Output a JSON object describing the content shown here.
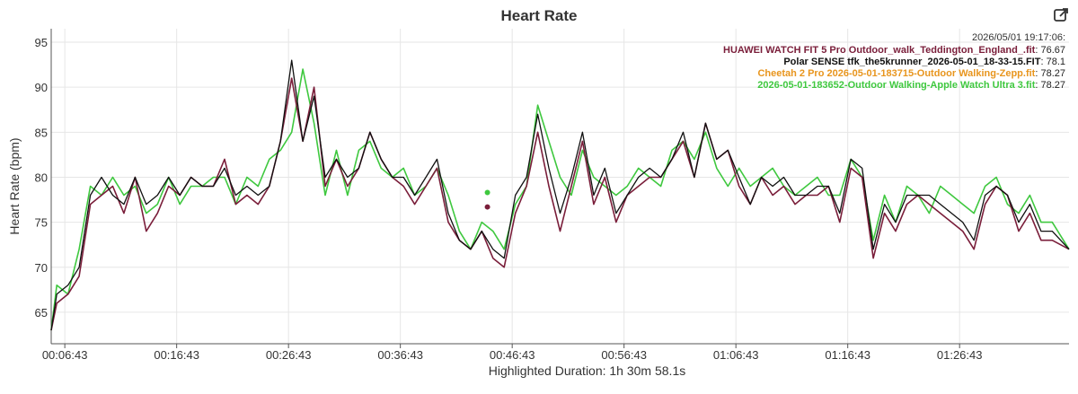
{
  "chart_data": {
    "type": "line",
    "title": "Heart Rate",
    "ylabel": "Heart Rate (bpm)",
    "xlabel": "Highlighted Duration: 1h 30m 58.1s",
    "ylim": [
      61.5,
      96.5
    ],
    "yticks": [
      65,
      70,
      75,
      80,
      85,
      90,
      95
    ],
    "xticks": [
      "00:06:43",
      "00:16:43",
      "00:26:43",
      "00:36:43",
      "00:46:43",
      "00:56:43",
      "01:06:43",
      "01:16:43",
      "01:26:43"
    ],
    "x_unit": "minutes elapsed",
    "xlim": [
      5.5,
      96.5
    ],
    "grid": true,
    "legend_placement": "top-right",
    "tooltip": {
      "timestamp": "2026/05/01 19:17:06:",
      "entries": [
        {
          "name": "HUAWEI WATCH FIT 5 Pro Outdoor_walk_Teddington_England_.fit",
          "value": "76.67",
          "color": "#7a1e3a"
        },
        {
          "name": "Polar SENSE tfk_the5krunner_2026-05-01_18-33-15.FIT",
          "value": "78.1",
          "color": "#111111"
        },
        {
          "name": "Cheetah 2 Pro 2026-05-01-183715-Outdoor Walking-Zepp.fit",
          "value": "78.27",
          "color": "#e8951d"
        },
        {
          "name": "2026-05-01-183652-Outdoor Walking-Apple Watch Ultra 3.fit",
          "value": "78.27",
          "color": "#3fc83f"
        }
      ]
    },
    "series": [
      {
        "name": "HUAWEI WATCH FIT 5 Pro Outdoor_walk_Teddington_England_.fit",
        "color": "#7a1e3a",
        "points": [
          [
            5.5,
            63
          ],
          [
            6,
            66
          ],
          [
            7,
            67
          ],
          [
            8,
            69
          ],
          [
            9,
            77
          ],
          [
            10,
            78
          ],
          [
            11,
            79
          ],
          [
            12,
            76
          ],
          [
            13,
            80
          ],
          [
            14,
            74
          ],
          [
            15,
            76
          ],
          [
            16,
            79
          ],
          [
            17,
            78
          ],
          [
            18,
            80
          ],
          [
            19,
            79
          ],
          [
            20,
            79
          ],
          [
            21,
            82
          ],
          [
            22,
            77
          ],
          [
            23,
            78
          ],
          [
            24,
            77
          ],
          [
            25,
            79
          ],
          [
            26,
            84
          ],
          [
            27,
            91
          ],
          [
            28,
            84
          ],
          [
            29,
            90
          ],
          [
            30,
            79
          ],
          [
            31,
            82
          ],
          [
            32,
            79
          ],
          [
            33,
            81
          ],
          [
            34,
            85
          ],
          [
            35,
            82
          ],
          [
            36,
            80
          ],
          [
            37,
            79
          ],
          [
            38,
            77
          ],
          [
            39,
            79
          ],
          [
            40,
            81
          ],
          [
            41,
            75
          ],
          [
            42,
            73
          ],
          [
            43,
            72
          ],
          [
            44,
            74
          ],
          [
            45,
            71
          ],
          [
            46,
            70
          ],
          [
            47,
            76
          ],
          [
            48,
            79
          ],
          [
            49,
            85
          ],
          [
            50,
            79
          ],
          [
            51,
            74
          ],
          [
            52,
            79
          ],
          [
            53,
            84
          ],
          [
            54,
            77
          ],
          [
            55,
            80
          ],
          [
            56,
            75
          ],
          [
            57,
            78
          ],
          [
            58,
            79
          ],
          [
            59,
            80
          ],
          [
            60,
            80
          ],
          [
            61,
            82
          ],
          [
            62,
            84
          ],
          [
            63,
            80
          ],
          [
            64,
            86
          ],
          [
            65,
            82
          ],
          [
            66,
            83
          ],
          [
            67,
            79
          ],
          [
            68,
            77
          ],
          [
            69,
            80
          ],
          [
            70,
            78
          ],
          [
            71,
            79
          ],
          [
            72,
            77
          ],
          [
            73,
            78
          ],
          [
            74,
            78
          ],
          [
            75,
            79
          ],
          [
            76,
            75
          ],
          [
            77,
            81
          ],
          [
            78,
            80
          ],
          [
            79,
            71
          ],
          [
            80,
            76
          ],
          [
            81,
            74
          ],
          [
            82,
            77
          ],
          [
            83,
            78
          ],
          [
            84,
            77
          ],
          [
            85,
            76
          ],
          [
            86,
            75
          ],
          [
            87,
            74
          ],
          [
            88,
            72
          ],
          [
            89,
            77
          ],
          [
            90,
            79
          ],
          [
            91,
            78
          ],
          [
            92,
            74
          ],
          [
            93,
            76
          ],
          [
            94,
            73
          ],
          [
            95,
            73
          ],
          [
            96.5,
            72
          ]
        ]
      },
      {
        "name": "Polar SENSE tfk_the5krunner_2026-05-01_18-33-15.FIT",
        "color": "#111111",
        "points": [
          [
            5.5,
            63
          ],
          [
            6,
            67
          ],
          [
            7,
            68
          ],
          [
            8,
            70
          ],
          [
            9,
            78
          ],
          [
            10,
            80
          ],
          [
            11,
            78
          ],
          [
            12,
            77
          ],
          [
            13,
            80
          ],
          [
            14,
            77
          ],
          [
            15,
            78
          ],
          [
            16,
            80
          ],
          [
            17,
            78
          ],
          [
            18,
            80
          ],
          [
            19,
            79
          ],
          [
            20,
            79
          ],
          [
            21,
            81
          ],
          [
            22,
            78
          ],
          [
            23,
            79
          ],
          [
            24,
            78
          ],
          [
            25,
            79
          ],
          [
            26,
            84
          ],
          [
            27,
            93
          ],
          [
            28,
            84
          ],
          [
            29,
            89
          ],
          [
            30,
            80
          ],
          [
            31,
            82
          ],
          [
            32,
            80
          ],
          [
            33,
            81
          ],
          [
            34,
            85
          ],
          [
            35,
            82
          ],
          [
            36,
            80
          ],
          [
            37,
            80
          ],
          [
            38,
            78
          ],
          [
            39,
            80
          ],
          [
            40,
            82
          ],
          [
            41,
            76
          ],
          [
            42,
            73
          ],
          [
            43,
            72
          ],
          [
            44,
            74
          ],
          [
            45,
            72
          ],
          [
            46,
            71
          ],
          [
            47,
            78
          ],
          [
            48,
            80
          ],
          [
            49,
            87
          ],
          [
            50,
            81
          ],
          [
            51,
            76
          ],
          [
            52,
            80
          ],
          [
            53,
            85
          ],
          [
            54,
            78
          ],
          [
            55,
            81
          ],
          [
            56,
            76
          ],
          [
            57,
            78
          ],
          [
            58,
            80
          ],
          [
            59,
            81
          ],
          [
            60,
            80
          ],
          [
            61,
            82
          ],
          [
            62,
            85
          ],
          [
            63,
            80
          ],
          [
            64,
            86
          ],
          [
            65,
            82
          ],
          [
            66,
            83
          ],
          [
            67,
            80
          ],
          [
            68,
            77
          ],
          [
            69,
            80
          ],
          [
            70,
            79
          ],
          [
            71,
            80
          ],
          [
            72,
            78
          ],
          [
            73,
            78
          ],
          [
            74,
            79
          ],
          [
            75,
            79
          ],
          [
            76,
            76
          ],
          [
            77,
            82
          ],
          [
            78,
            81
          ],
          [
            79,
            72
          ],
          [
            80,
            77
          ],
          [
            81,
            75
          ],
          [
            82,
            78
          ],
          [
            83,
            78
          ],
          [
            84,
            78
          ],
          [
            85,
            77
          ],
          [
            86,
            76
          ],
          [
            87,
            75
          ],
          [
            88,
            73
          ],
          [
            89,
            78
          ],
          [
            90,
            79
          ],
          [
            91,
            78
          ],
          [
            92,
            75
          ],
          [
            93,
            77
          ],
          [
            94,
            74
          ],
          [
            95,
            74
          ],
          [
            96.5,
            72
          ]
        ]
      },
      {
        "name": "2026-05-01-183652-Outdoor Walking-Apple Watch Ultra 3.fit",
        "color": "#3fc83f",
        "points": [
          [
            5.5,
            63
          ],
          [
            6,
            68
          ],
          [
            7,
            67
          ],
          [
            8,
            72
          ],
          [
            9,
            79
          ],
          [
            10,
            78
          ],
          [
            11,
            80
          ],
          [
            12,
            78
          ],
          [
            13,
            79
          ],
          [
            14,
            76
          ],
          [
            15,
            77
          ],
          [
            16,
            80
          ],
          [
            17,
            77
          ],
          [
            18,
            79
          ],
          [
            19,
            79
          ],
          [
            20,
            80
          ],
          [
            21,
            80
          ],
          [
            22,
            77
          ],
          [
            23,
            80
          ],
          [
            24,
            79
          ],
          [
            25,
            82
          ],
          [
            26,
            83
          ],
          [
            27,
            85
          ],
          [
            28,
            92
          ],
          [
            29,
            86
          ],
          [
            30,
            78
          ],
          [
            31,
            83
          ],
          [
            32,
            78
          ],
          [
            33,
            83
          ],
          [
            34,
            84
          ],
          [
            35,
            81
          ],
          [
            36,
            80
          ],
          [
            37,
            81
          ],
          [
            38,
            78
          ],
          [
            39,
            79
          ],
          [
            40,
            81
          ],
          [
            41,
            78
          ],
          [
            42,
            74
          ],
          [
            43,
            72
          ],
          [
            44,
            75
          ],
          [
            45,
            74
          ],
          [
            46,
            72
          ],
          [
            47,
            77
          ],
          [
            48,
            79
          ],
          [
            49,
            88
          ],
          [
            50,
            84
          ],
          [
            51,
            80
          ],
          [
            52,
            78
          ],
          [
            53,
            83
          ],
          [
            54,
            80
          ],
          [
            55,
            79
          ],
          [
            56,
            78
          ],
          [
            57,
            79
          ],
          [
            58,
            81
          ],
          [
            59,
            80
          ],
          [
            60,
            79
          ],
          [
            61,
            83
          ],
          [
            62,
            84
          ],
          [
            63,
            82
          ],
          [
            64,
            85
          ],
          [
            65,
            81
          ],
          [
            66,
            79
          ],
          [
            67,
            81
          ],
          [
            68,
            79
          ],
          [
            69,
            80
          ],
          [
            70,
            81
          ],
          [
            71,
            79
          ],
          [
            72,
            78
          ],
          [
            73,
            79
          ],
          [
            74,
            80
          ],
          [
            75,
            78
          ],
          [
            76,
            78
          ],
          [
            77,
            82
          ],
          [
            78,
            80
          ],
          [
            79,
            73
          ],
          [
            80,
            78
          ],
          [
            81,
            75
          ],
          [
            82,
            79
          ],
          [
            83,
            78
          ],
          [
            84,
            76
          ],
          [
            85,
            79
          ],
          [
            86,
            78
          ],
          [
            87,
            77
          ],
          [
            88,
            76
          ],
          [
            89,
            79
          ],
          [
            90,
            80
          ],
          [
            91,
            77
          ],
          [
            92,
            76
          ],
          [
            93,
            78
          ],
          [
            94,
            75
          ],
          [
            95,
            75
          ],
          [
            96.5,
            72
          ]
        ]
      }
    ],
    "markers": [
      {
        "series": "2026-05-01-183652-Outdoor Walking-Apple Watch Ultra 3.fit",
        "x": 44.5,
        "y": 78.3,
        "color": "#3fc83f"
      },
      {
        "series": "HUAWEI WATCH FIT 5 Pro Outdoor_walk_Teddington_England_.fit",
        "x": 44.5,
        "y": 76.7,
        "color": "#7a1e3a"
      }
    ]
  }
}
